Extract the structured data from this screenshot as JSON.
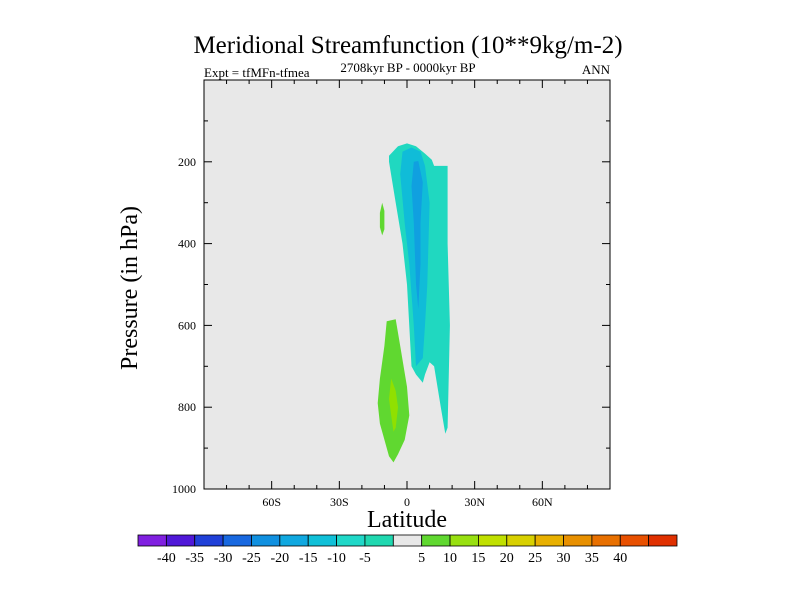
{
  "chart_data": {
    "type": "contour",
    "title": "Meridional Streamfunction (10**9kg/m-2)",
    "subtitle_left": "Expt = tfMFn-tfmea",
    "subtitle_center": "2708kyr BP - 0000kyr BP",
    "subtitle_right": "ANN",
    "xlabel": "Latitude",
    "ylabel": "Pressure (in hPa)",
    "xlim": [
      -90,
      90
    ],
    "ylim": [
      1000,
      0
    ],
    "x_ticks": [
      {
        "value": -60,
        "label": "60S"
      },
      {
        "value": -30,
        "label": "30S"
      },
      {
        "value": 0,
        "label": "0"
      },
      {
        "value": 30,
        "label": "30N"
      },
      {
        "value": 60,
        "label": "60N"
      }
    ],
    "y_ticks": [
      {
        "value": 200,
        "label": "200"
      },
      {
        "value": 400,
        "label": "400"
      },
      {
        "value": 600,
        "label": "600"
      },
      {
        "value": 800,
        "label": "800"
      },
      {
        "value": 1000,
        "label": "1000"
      }
    ],
    "background_color": "#e8e8e8",
    "regions": [
      {
        "name": "neg-outer",
        "level": "-10 to -5",
        "color": "#20d8c0",
        "points": [
          [
            -8,
            185
          ],
          [
            -4,
            162
          ],
          [
            0,
            155
          ],
          [
            4,
            162
          ],
          [
            8,
            180
          ],
          [
            11,
            195
          ],
          [
            12,
            210
          ],
          [
            18,
            210
          ],
          [
            18,
            400
          ],
          [
            19,
            600
          ],
          [
            18,
            850
          ],
          [
            17,
            865
          ],
          [
            15,
            800
          ],
          [
            12,
            700
          ],
          [
            10,
            690
          ],
          [
            8,
            720
          ],
          [
            7,
            740
          ],
          [
            4,
            720
          ],
          [
            2,
            700
          ],
          [
            0,
            500
          ],
          [
            -2,
            400
          ],
          [
            -5,
            300
          ],
          [
            -8,
            200
          ]
        ]
      },
      {
        "name": "neg-mid",
        "level": "-15 to -10",
        "color": "#10bcd8",
        "points": [
          [
            -2,
            175
          ],
          [
            2,
            165
          ],
          [
            6,
            175
          ],
          [
            8,
            210
          ],
          [
            10,
            300
          ],
          [
            9,
            500
          ],
          [
            8,
            600
          ],
          [
            7,
            680
          ],
          [
            4,
            700
          ],
          [
            3,
            600
          ],
          [
            1,
            450
          ],
          [
            -1,
            350
          ],
          [
            -3,
            230
          ]
        ]
      },
      {
        "name": "neg-core",
        "level": "-20 to -15",
        "color": "#10a0e0",
        "points": [
          [
            3,
            200
          ],
          [
            5,
            198
          ],
          [
            7,
            250
          ],
          [
            6,
            350
          ],
          [
            6,
            450
          ],
          [
            5,
            560
          ],
          [
            4,
            500
          ],
          [
            3,
            350
          ],
          [
            2,
            260
          ]
        ]
      },
      {
        "name": "pos-small",
        "level": "5 to 10",
        "color": "#60d830",
        "points": [
          [
            -12,
            325
          ],
          [
            -11,
            300
          ],
          [
            -10,
            320
          ],
          [
            -10,
            365
          ],
          [
            -11,
            380
          ],
          [
            -12,
            360
          ]
        ]
      },
      {
        "name": "pos-lower",
        "level": "5 to 10",
        "color": "#60d830",
        "points": [
          [
            -9,
            590
          ],
          [
            -5,
            585
          ],
          [
            -3,
            650
          ],
          [
            0,
            750
          ],
          [
            1,
            820
          ],
          [
            -1,
            880
          ],
          [
            -4,
            915
          ],
          [
            -6,
            935
          ],
          [
            -8,
            920
          ],
          [
            -12,
            840
          ],
          [
            -13,
            790
          ],
          [
            -12,
            730
          ],
          [
            -10,
            650
          ]
        ]
      },
      {
        "name": "pos-core",
        "level": "10 to 15",
        "color": "#90e000",
        "points": [
          [
            -7,
            730
          ],
          [
            -5,
            760
          ],
          [
            -4,
            800
          ],
          [
            -5,
            850
          ],
          [
            -6,
            860
          ],
          [
            -7,
            820
          ],
          [
            -8,
            780
          ]
        ]
      }
    ],
    "colorbar": {
      "labels": [
        "-40",
        "-35",
        "-30",
        "-25",
        "-20",
        "-15",
        "-10",
        "-5",
        "5",
        "10",
        "15",
        "20",
        "25",
        "30",
        "35",
        "40"
      ],
      "colors": [
        "#8020e0",
        "#5018d8",
        "#2040d8",
        "#1868e0",
        "#1090e0",
        "#10a8e0",
        "#10c0d8",
        "#20d8c8",
        "#20d8b0",
        "#e8e8e8",
        "#60d830",
        "#98e010",
        "#c0e000",
        "#d8d000",
        "#e8b000",
        "#e89000",
        "#e87000",
        "#e85000",
        "#e03000"
      ]
    }
  }
}
